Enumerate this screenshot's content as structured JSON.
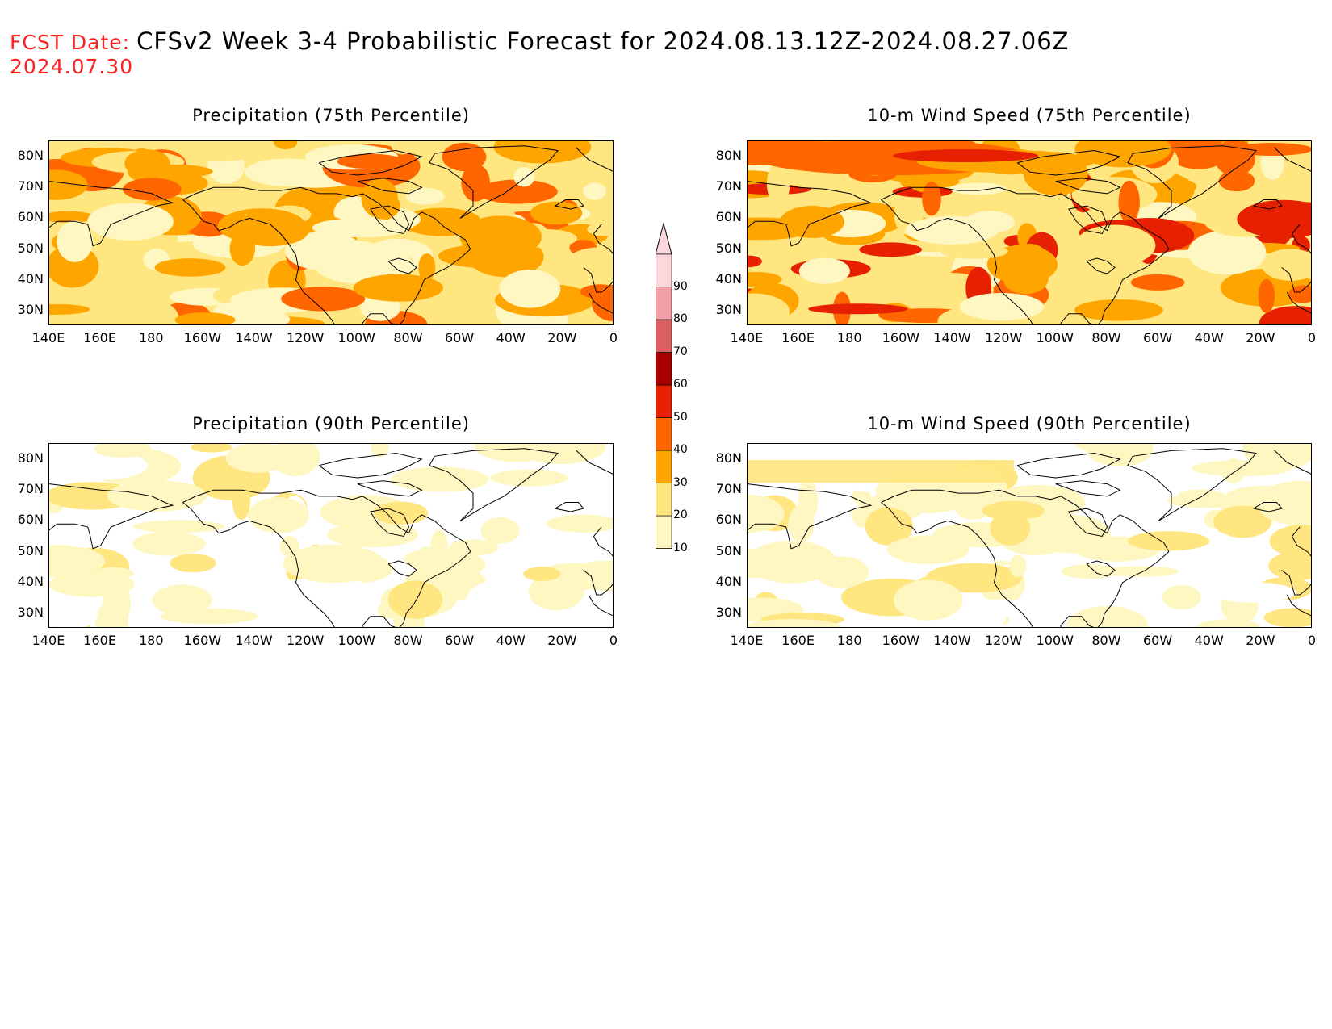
{
  "header": {
    "fcst_label": "FCST Date:",
    "title": "CFSv2 Week 3-4 Probabilistic Forecast for 2024.08.13.12Z-2024.08.27.06Z",
    "fcst_date": "2024.07.30"
  },
  "axes": {
    "lat_labels": [
      "80N",
      "70N",
      "60N",
      "50N",
      "40N",
      "30N"
    ],
    "lon_labels": [
      "140E",
      "160E",
      "180",
      "160W",
      "140W",
      "120W",
      "100W",
      "80W",
      "60W",
      "40W",
      "20W",
      "0"
    ]
  },
  "colorbar": {
    "levels": [
      "10",
      "20",
      "30",
      "40",
      "50",
      "60",
      "70",
      "80",
      "90"
    ],
    "colors": [
      "#fff7c2",
      "#ffe680",
      "#ffa500",
      "#ff6600",
      "#e62000",
      "#a80000",
      "#d96060",
      "#f2a0a8",
      "#fcd8dc"
    ]
  },
  "panels": [
    {
      "id": "precip75",
      "title": "Precipitation (75th Percentile)",
      "intensity": "moderate",
      "dominant_color": "#ffe680"
    },
    {
      "id": "wind75",
      "title": "10-m Wind Speed (75th Percentile)",
      "intensity": "moderate-high",
      "dominant_color": "#ffe680"
    },
    {
      "id": "precip90",
      "title": "Precipitation (90th Percentile)",
      "intensity": "low",
      "dominant_color": "#fff7c2"
    },
    {
      "id": "wind90",
      "title": "10-m Wind Speed (90th Percentile)",
      "intensity": "low",
      "dominant_color": "#fff7c2"
    }
  ]
}
